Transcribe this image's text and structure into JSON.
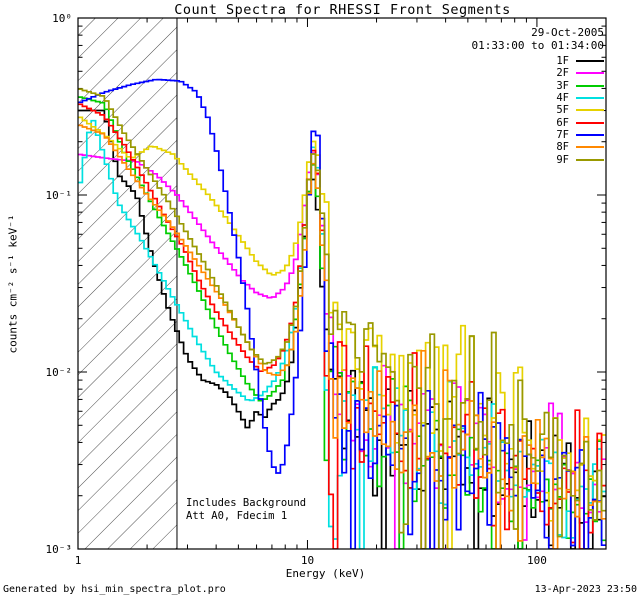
{
  "title": "Count Spectra for RHESSI Front Segments",
  "legend": {
    "date": "29-Oct-2005",
    "time": "01:33:00 to 01:34:00"
  },
  "annotations": {
    "line1": "Includes Background",
    "line2": "Att A0, Fdecim 1"
  },
  "axes": {
    "xlabel": "Energy (keV)",
    "ylabel": "counts cm⁻² s⁻¹ keV⁻¹"
  },
  "footer": {
    "left": "Generated by hsi_min_spectra_plot.pro",
    "right": "13-Apr-2023 23:50"
  },
  "chart_data": {
    "type": "line",
    "title": "Count Spectra for RHESSI Front Segments",
    "xlabel": "Energy (keV)",
    "ylabel": "counts cm⁻² s⁻¹ keV⁻¹",
    "xscale": "log",
    "yscale": "log",
    "xlim": [
      1,
      200
    ],
    "ylim": [
      0.001,
      1
    ],
    "x_major_ticks": [
      1,
      10,
      100
    ],
    "x_tick_labels": [
      "1",
      "10",
      "100"
    ],
    "y_major_ticks": [
      1,
      0.1,
      0.01,
      0.001
    ],
    "y_tick_labels": [
      "10⁰",
      "10⁻¹",
      "10⁻²",
      "10⁻³"
    ],
    "legend_position": "top-right",
    "grid": false,
    "hatch_region_keV": [
      1,
      2.7
    ],
    "noise": {
      "start_keV": 11.8,
      "sigma_dex": 0.4,
      "spike_prob": 0.05,
      "spike_dex": -0.9
    },
    "series": [
      {
        "name": "1F",
        "color": "#000000",
        "seed": 11,
        "points": [
          [
            1,
            0.3
          ],
          [
            1.3,
            0.3
          ],
          [
            1.5,
            0.13
          ],
          [
            1.8,
            0.1
          ],
          [
            2.1,
            0.045
          ],
          [
            2.5,
            0.022
          ],
          [
            3.0,
            0.012
          ],
          [
            3.5,
            0.009
          ],
          [
            4.0,
            0.0085
          ],
          [
            4.5,
            0.0075
          ],
          [
            5.0,
            0.006
          ],
          [
            5.5,
            0.0048
          ],
          [
            6.0,
            0.006
          ],
          [
            6.5,
            0.0055
          ],
          [
            7.0,
            0.0065
          ],
          [
            7.5,
            0.007
          ],
          [
            8.0,
            0.008
          ],
          [
            8.6,
            0.012
          ],
          [
            9.3,
            0.03
          ],
          [
            10.0,
            0.09
          ],
          [
            10.5,
            0.13
          ],
          [
            11.0,
            0.1
          ],
          [
            11.6,
            0.03
          ],
          [
            12.3,
            0.012
          ],
          [
            14,
            0.007
          ],
          [
            17,
            0.0055
          ],
          [
            25,
            0.0045
          ],
          [
            40,
            0.0035
          ],
          [
            70,
            0.0028
          ],
          [
            120,
            0.002
          ],
          [
            200,
            0.0016
          ]
        ]
      },
      {
        "name": "2F",
        "color": "#ff00ff",
        "seed": 22,
        "points": [
          [
            1,
            0.17
          ],
          [
            1.4,
            0.16
          ],
          [
            1.8,
            0.155
          ],
          [
            2.2,
            0.13
          ],
          [
            2.7,
            0.1
          ],
          [
            3.2,
            0.075
          ],
          [
            3.8,
            0.055
          ],
          [
            4.5,
            0.042
          ],
          [
            5.2,
            0.033
          ],
          [
            6.0,
            0.028
          ],
          [
            7.0,
            0.026
          ],
          [
            8.0,
            0.03
          ],
          [
            8.8,
            0.04
          ],
          [
            9.5,
            0.07
          ],
          [
            10.2,
            0.14
          ],
          [
            10.7,
            0.18
          ],
          [
            11.2,
            0.12
          ],
          [
            11.8,
            0.05
          ],
          [
            12.5,
            0.018
          ],
          [
            14,
            0.01
          ],
          [
            17,
            0.008
          ],
          [
            25,
            0.006
          ],
          [
            40,
            0.0045
          ],
          [
            70,
            0.0035
          ],
          [
            120,
            0.0028
          ],
          [
            200,
            0.0022
          ]
        ]
      },
      {
        "name": "3F",
        "color": "#00cc00",
        "seed": 33,
        "points": [
          [
            1,
            0.36
          ],
          [
            1.3,
            0.33
          ],
          [
            1.6,
            0.17
          ],
          [
            2.0,
            0.1
          ],
          [
            2.4,
            0.065
          ],
          [
            2.9,
            0.042
          ],
          [
            3.4,
            0.028
          ],
          [
            4.0,
            0.018
          ],
          [
            4.7,
            0.012
          ],
          [
            5.5,
            0.0085
          ],
          [
            6.3,
            0.0068
          ],
          [
            7.0,
            0.0075
          ],
          [
            7.8,
            0.009
          ],
          [
            8.6,
            0.014
          ],
          [
            9.4,
            0.035
          ],
          [
            10.1,
            0.1
          ],
          [
            10.6,
            0.15
          ],
          [
            11.2,
            0.09
          ],
          [
            11.8,
            0.025
          ],
          [
            12.6,
            0.01
          ],
          [
            14,
            0.0065
          ],
          [
            17,
            0.005
          ],
          [
            25,
            0.004
          ],
          [
            40,
            0.0032
          ],
          [
            70,
            0.0026
          ],
          [
            120,
            0.002
          ],
          [
            200,
            0.0016
          ]
        ]
      },
      {
        "name": "4F",
        "color": "#00e0e0",
        "seed": 44,
        "points": [
          [
            1,
            0.1
          ],
          [
            1.15,
            0.28
          ],
          [
            1.5,
            0.09
          ],
          [
            1.9,
            0.055
          ],
          [
            2.3,
            0.035
          ],
          [
            2.8,
            0.022
          ],
          [
            3.4,
            0.014
          ],
          [
            4.0,
            0.01
          ],
          [
            4.8,
            0.008
          ],
          [
            5.6,
            0.0068
          ],
          [
            6.4,
            0.0075
          ],
          [
            7.2,
            0.009
          ],
          [
            8.0,
            0.012
          ],
          [
            8.8,
            0.02
          ],
          [
            9.5,
            0.05
          ],
          [
            10.2,
            0.13
          ],
          [
            10.7,
            0.2
          ],
          [
            11.3,
            0.12
          ],
          [
            11.9,
            0.03
          ],
          [
            12.7,
            0.001
          ],
          [
            13.2,
            0.008
          ],
          [
            15,
            0.006
          ],
          [
            20,
            0.005
          ],
          [
            30,
            0.004
          ],
          [
            50,
            0.0033
          ],
          [
            90,
            0.0027
          ],
          [
            150,
            0.0022
          ],
          [
            200,
            0.002
          ]
        ]
      },
      {
        "name": "5F",
        "color": "#e6d200",
        "seed": 55,
        "points": [
          [
            1,
            0.28
          ],
          [
            1.3,
            0.22
          ],
          [
            1.7,
            0.16
          ],
          [
            2.1,
            0.19
          ],
          [
            2.6,
            0.17
          ],
          [
            3.1,
            0.13
          ],
          [
            3.7,
            0.1
          ],
          [
            4.4,
            0.075
          ],
          [
            5.2,
            0.055
          ],
          [
            6.0,
            0.042
          ],
          [
            7.0,
            0.035
          ],
          [
            8.0,
            0.038
          ],
          [
            8.8,
            0.05
          ],
          [
            9.5,
            0.08
          ],
          [
            10.2,
            0.16
          ],
          [
            10.7,
            0.21
          ],
          [
            11.3,
            0.15
          ],
          [
            12.0,
            0.06
          ],
          [
            13,
            0.035
          ],
          [
            15,
            0.022
          ],
          [
            18,
            0.014
          ],
          [
            22,
            0.01
          ],
          [
            30,
            0.0085
          ],
          [
            45,
            0.007
          ],
          [
            70,
            0.0055
          ],
          [
            110,
            0.0042
          ],
          [
            160,
            0.0033
          ],
          [
            200,
            0.0028
          ]
        ]
      },
      {
        "name": "6F",
        "color": "#ff0000",
        "seed": 66,
        "points": [
          [
            1,
            0.33
          ],
          [
            1.3,
            0.28
          ],
          [
            1.6,
            0.19
          ],
          [
            2.0,
            0.115
          ],
          [
            2.4,
            0.075
          ],
          [
            2.9,
            0.05
          ],
          [
            3.4,
            0.032
          ],
          [
            4.0,
            0.022
          ],
          [
            4.7,
            0.016
          ],
          [
            5.5,
            0.012
          ],
          [
            6.3,
            0.01
          ],
          [
            7.2,
            0.011
          ],
          [
            8.0,
            0.014
          ],
          [
            8.8,
            0.022
          ],
          [
            9.5,
            0.05
          ],
          [
            10.2,
            0.13
          ],
          [
            10.7,
            0.19
          ],
          [
            11.3,
            0.11
          ],
          [
            12.0,
            0.03
          ],
          [
            13,
            0.012
          ],
          [
            15,
            0.008
          ],
          [
            20,
            0.0065
          ],
          [
            30,
            0.005
          ],
          [
            50,
            0.004
          ],
          [
            90,
            0.003
          ],
          [
            150,
            0.0023
          ],
          [
            200,
            0.002
          ]
        ]
      },
      {
        "name": "7F",
        "color": "#0000ff",
        "seed": 77,
        "points": [
          [
            1,
            0.33
          ],
          [
            1.3,
            0.38
          ],
          [
            1.7,
            0.42
          ],
          [
            2.2,
            0.45
          ],
          [
            2.8,
            0.44
          ],
          [
            3.3,
            0.38
          ],
          [
            3.7,
            0.27
          ],
          [
            4.1,
            0.16
          ],
          [
            4.5,
            0.09
          ],
          [
            5.0,
            0.045
          ],
          [
            5.5,
            0.022
          ],
          [
            6.0,
            0.01
          ],
          [
            6.5,
            0.005
          ],
          [
            7.0,
            0.003
          ],
          [
            7.6,
            0.0026
          ],
          [
            8.2,
            0.004
          ],
          [
            8.8,
            0.008
          ],
          [
            9.4,
            0.02
          ],
          [
            10.0,
            0.07
          ],
          [
            10.5,
            0.22
          ],
          [
            11.0,
            0.26
          ],
          [
            11.5,
            0.1
          ],
          [
            12.0,
            0.02
          ],
          [
            13,
            0.008
          ],
          [
            15,
            0.0055
          ],
          [
            20,
            0.0045
          ],
          [
            30,
            0.0038
          ],
          [
            50,
            0.0032
          ],
          [
            90,
            0.0026
          ],
          [
            150,
            0.002
          ],
          [
            200,
            0.0017
          ]
        ]
      },
      {
        "name": "8F",
        "color": "#ff8800",
        "seed": 88,
        "points": [
          [
            1,
            0.25
          ],
          [
            1.3,
            0.22
          ],
          [
            1.6,
            0.15
          ],
          [
            2.0,
            0.1
          ],
          [
            2.5,
            0.07
          ],
          [
            3.0,
            0.05
          ],
          [
            3.6,
            0.035
          ],
          [
            4.3,
            0.025
          ],
          [
            5.0,
            0.018
          ],
          [
            5.8,
            0.013
          ],
          [
            6.6,
            0.01
          ],
          [
            7.4,
            0.0095
          ],
          [
            8.2,
            0.011
          ],
          [
            9.0,
            0.018
          ],
          [
            9.6,
            0.04
          ],
          [
            10.2,
            0.11
          ],
          [
            10.7,
            0.16
          ],
          [
            11.3,
            0.09
          ],
          [
            12.0,
            0.025
          ],
          [
            13,
            0.01
          ],
          [
            15,
            0.007
          ],
          [
            20,
            0.0055
          ],
          [
            30,
            0.0045
          ],
          [
            50,
            0.0036
          ],
          [
            90,
            0.0028
          ],
          [
            150,
            0.0022
          ],
          [
            200,
            0.0019
          ]
        ]
      },
      {
        "name": "9F",
        "color": "#999900",
        "seed": 99,
        "points": [
          [
            1,
            0.4
          ],
          [
            1.3,
            0.36
          ],
          [
            1.6,
            0.22
          ],
          [
            2.0,
            0.14
          ],
          [
            2.5,
            0.09
          ],
          [
            3.0,
            0.06
          ],
          [
            3.6,
            0.04
          ],
          [
            4.3,
            0.026
          ],
          [
            5.0,
            0.018
          ],
          [
            5.8,
            0.013
          ],
          [
            6.6,
            0.011
          ],
          [
            7.4,
            0.012
          ],
          [
            8.2,
            0.015
          ],
          [
            9.0,
            0.025
          ],
          [
            9.6,
            0.055
          ],
          [
            10.2,
            0.13
          ],
          [
            10.7,
            0.18
          ],
          [
            11.3,
            0.12
          ],
          [
            12.0,
            0.045
          ],
          [
            13,
            0.025
          ],
          [
            15,
            0.016
          ],
          [
            18,
            0.012
          ],
          [
            22,
            0.009
          ],
          [
            30,
            0.0075
          ],
          [
            45,
            0.006
          ],
          [
            70,
            0.0048
          ],
          [
            110,
            0.0038
          ],
          [
            160,
            0.003
          ],
          [
            200,
            0.0026
          ]
        ]
      }
    ]
  }
}
